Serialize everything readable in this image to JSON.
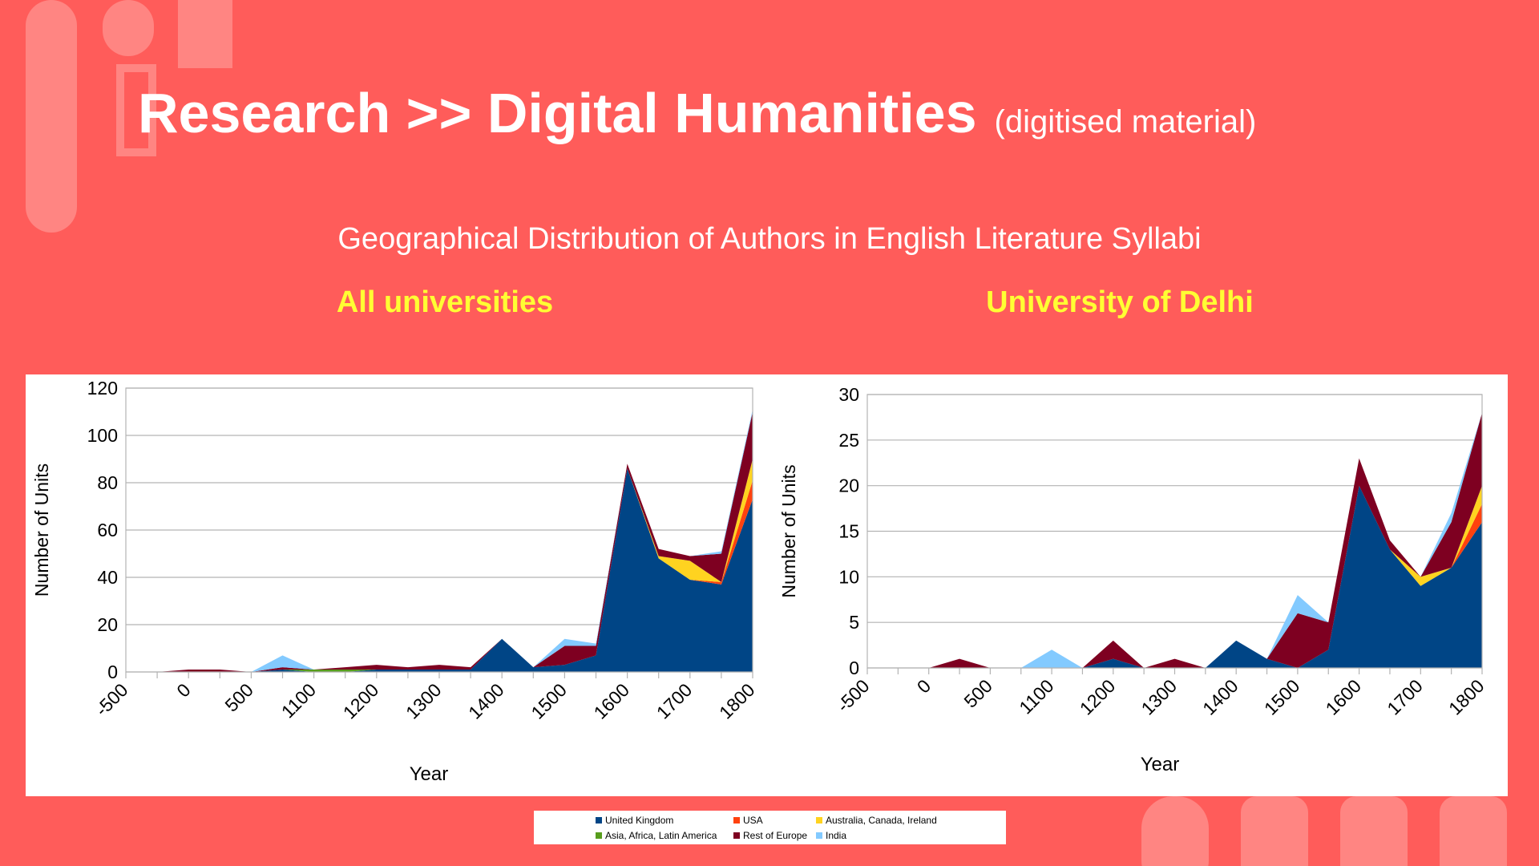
{
  "header": {
    "title": "Research >> Digital Humanities",
    "note": "(digitised material)",
    "subtitle": "Geographical Distribution of Authors in English Literature Syllabi"
  },
  "chart_data": [
    {
      "type": "area",
      "stacked": true,
      "title": "All universities",
      "xlabel": "Year",
      "ylabel": "Number of Units",
      "categories": [
        "-500",
        null,
        "0",
        null,
        "500",
        null,
        "1100",
        null,
        "1200",
        null,
        "1300",
        null,
        "1400",
        null,
        "1500",
        null,
        "1600",
        null,
        "1700",
        null,
        "1800"
      ],
      "ylim": [
        0,
        120
      ],
      "yticks": [
        0,
        20,
        40,
        60,
        80,
        100,
        120
      ],
      "grid": true,
      "series": [
        {
          "name": "United Kingdom",
          "color": "#004586",
          "values": [
            0,
            0,
            0,
            0,
            0,
            1,
            0,
            0,
            1,
            1,
            1,
            1,
            14,
            2,
            3,
            7,
            86,
            48,
            39,
            37,
            73
          ]
        },
        {
          "name": "USA",
          "color": "#ff420e",
          "values": [
            0,
            0,
            0,
            0,
            0,
            0,
            0,
            0,
            0,
            0,
            0,
            0,
            0,
            0,
            0,
            0,
            0,
            0,
            0,
            1,
            8
          ]
        },
        {
          "name": "Australia, Canada, Ireland",
          "color": "#ffd320",
          "values": [
            0,
            0,
            0,
            0,
            0,
            0,
            0,
            0,
            0,
            0,
            0,
            0,
            0,
            0,
            0,
            0,
            0,
            1,
            8,
            0,
            9
          ]
        },
        {
          "name": "Asia, Africa, Latin America",
          "color": "#579d1c",
          "values": [
            0,
            0,
            0,
            0,
            0,
            0,
            1,
            1,
            0,
            0,
            0,
            0,
            0,
            0,
            0,
            0,
            0,
            0,
            0,
            0,
            0
          ]
        },
        {
          "name": "Rest of Europe",
          "color": "#7e0021",
          "values": [
            0,
            0,
            1,
            1,
            0,
            1,
            0,
            1,
            2,
            1,
            2,
            1,
            0,
            0,
            8,
            4,
            2,
            3,
            2,
            12,
            20
          ]
        },
        {
          "name": "India",
          "color": "#83caff",
          "values": [
            0,
            0,
            0,
            0,
            0,
            5,
            0,
            0,
            0,
            0,
            0,
            0,
            0,
            0,
            3,
            1,
            0,
            0,
            0,
            1,
            1
          ]
        }
      ]
    },
    {
      "type": "area",
      "stacked": true,
      "title": "University of Delhi",
      "xlabel": "Year",
      "ylabel": "Number of Units",
      "categories": [
        "-500",
        null,
        "0",
        null,
        "500",
        null,
        "1100",
        null,
        "1200",
        null,
        "1300",
        null,
        "1400",
        null,
        "1500",
        null,
        "1600",
        null,
        "1700",
        null,
        "1800"
      ],
      "ylim": [
        0,
        30
      ],
      "yticks": [
        0,
        5,
        10,
        15,
        20,
        25,
        30
      ],
      "grid": true,
      "series": [
        {
          "name": "United Kingdom",
          "color": "#004586",
          "values": [
            0,
            0,
            0,
            0,
            0,
            0,
            0,
            0,
            1,
            0,
            0,
            0,
            3,
            1,
            0,
            2,
            20,
            13,
            9,
            11,
            16
          ]
        },
        {
          "name": "USA",
          "color": "#ff420e",
          "values": [
            0,
            0,
            0,
            0,
            0,
            0,
            0,
            0,
            0,
            0,
            0,
            0,
            0,
            0,
            0,
            0,
            0,
            0,
            0,
            0,
            2
          ]
        },
        {
          "name": "Australia, Canada, Ireland",
          "color": "#ffd320",
          "values": [
            0,
            0,
            0,
            0,
            0,
            0,
            0,
            0,
            0,
            0,
            0,
            0,
            0,
            0,
            0,
            0,
            0,
            0,
            1,
            0,
            2
          ]
        },
        {
          "name": "Asia, Africa, Latin America",
          "color": "#579d1c",
          "values": [
            0,
            0,
            0,
            0,
            0,
            0,
            0,
            0,
            0,
            0,
            0,
            0,
            0,
            0,
            0,
            0,
            0,
            0,
            0,
            0,
            0
          ]
        },
        {
          "name": "Rest of Europe",
          "color": "#7e0021",
          "values": [
            0,
            0,
            0,
            1,
            0,
            0,
            0,
            0,
            2,
            0,
            1,
            0,
            0,
            0,
            6,
            3,
            3,
            1,
            0,
            5,
            8
          ]
        },
        {
          "name": "India",
          "color": "#83caff",
          "values": [
            0,
            0,
            0,
            0,
            0,
            0,
            2,
            0,
            0,
            0,
            0,
            0,
            0,
            0,
            2,
            0,
            0,
            0,
            0,
            1,
            0
          ]
        }
      ]
    }
  ]
}
